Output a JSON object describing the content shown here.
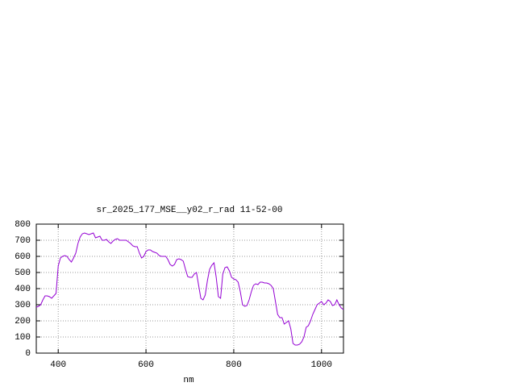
{
  "chart_data": {
    "type": "line",
    "title": "sr_2025_177_MSE__y02_r_rad 11-52-00",
    "x_label": "nm",
    "xlim": [
      350,
      1050
    ],
    "xticks": [
      400,
      600,
      800,
      1000
    ],
    "ylim": [
      0,
      800
    ],
    "yticks": [
      0,
      100,
      200,
      300,
      400,
      500,
      600,
      700,
      800
    ],
    "grid": true,
    "series": [
      {
        "color": "#9400d3",
        "x": [
          350,
          355,
          360,
          365,
          370,
          375,
          380,
          385,
          390,
          395,
          400,
          405,
          410,
          415,
          420,
          425,
          430,
          435,
          440,
          445,
          450,
          455,
          460,
          465,
          470,
          475,
          480,
          485,
          490,
          495,
          500,
          505,
          510,
          515,
          520,
          525,
          530,
          535,
          540,
          545,
          550,
          555,
          560,
          565,
          570,
          575,
          580,
          585,
          590,
          595,
          600,
          605,
          610,
          615,
          620,
          625,
          630,
          635,
          640,
          645,
          650,
          655,
          660,
          665,
          670,
          675,
          680,
          685,
          690,
          695,
          700,
          705,
          710,
          715,
          720,
          725,
          730,
          735,
          740,
          745,
          750,
          755,
          760,
          765,
          770,
          775,
          780,
          785,
          790,
          795,
          800,
          805,
          810,
          815,
          820,
          825,
          830,
          835,
          840,
          845,
          850,
          855,
          860,
          865,
          870,
          875,
          880,
          885,
          890,
          895,
          900,
          905,
          910,
          915,
          920,
          925,
          930,
          935,
          940,
          945,
          950,
          955,
          960,
          965,
          970,
          975,
          980,
          985,
          990,
          995,
          1000,
          1005,
          1010,
          1015,
          1020,
          1025,
          1030,
          1035,
          1040,
          1045,
          1050
        ],
        "values": [
          285,
          290,
          300,
          330,
          355,
          355,
          350,
          340,
          355,
          370,
          540,
          590,
          600,
          605,
          600,
          580,
          565,
          590,
          620,
          680,
          720,
          740,
          745,
          740,
          735,
          740,
          745,
          715,
          720,
          725,
          700,
          700,
          705,
          690,
          680,
          695,
          705,
          710,
          700,
          700,
          700,
          700,
          690,
          680,
          665,
          660,
          660,
          620,
          590,
          600,
          630,
          640,
          640,
          630,
          625,
          620,
          605,
          600,
          600,
          600,
          580,
          550,
          540,
          550,
          580,
          585,
          580,
          570,
          520,
          475,
          470,
          470,
          490,
          500,
          420,
          340,
          330,
          360,
          450,
          520,
          545,
          560,
          470,
          350,
          340,
          490,
          530,
          535,
          510,
          470,
          460,
          455,
          440,
          380,
          300,
          290,
          295,
          330,
          380,
          420,
          430,
          425,
          440,
          440,
          435,
          435,
          430,
          420,
          400,
          320,
          240,
          220,
          220,
          180,
          190,
          200,
          150,
          60,
          50,
          50,
          55,
          70,
          100,
          160,
          170,
          200,
          240,
          270,
          300,
          310,
          320,
          300,
          310,
          330,
          320,
          295,
          300,
          330,
          300,
          280,
          270
        ]
      }
    ]
  }
}
